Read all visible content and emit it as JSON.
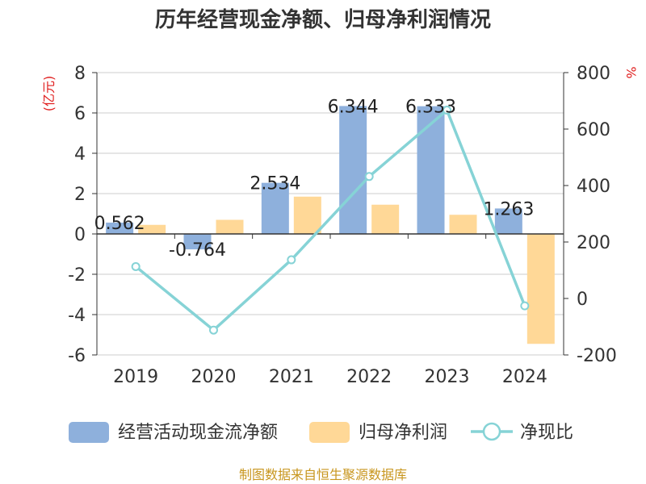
{
  "chart_data": {
    "type": "bar",
    "title": "历年经营现金净额、归母净利润情况",
    "categories": [
      "2019",
      "2020",
      "2021",
      "2022",
      "2023",
      "2024"
    ],
    "y_left": {
      "unit": "(亿元)",
      "ylim": [
        -6,
        8
      ],
      "ticks": [
        -6,
        -4,
        -2,
        0,
        2,
        4,
        6,
        8
      ]
    },
    "y_right": {
      "unit": "%",
      "ylim": [
        -200,
        800
      ],
      "ticks": [
        -200,
        0,
        200,
        400,
        600,
        800
      ]
    },
    "series": [
      {
        "name": "经营活动现金流净额",
        "kind": "bar",
        "axis": "left",
        "color": "#8eb0dc",
        "values": [
          0.562,
          -0.764,
          2.534,
          6.344,
          6.333,
          1.263
        ],
        "labels": [
          "0.562",
          "-0.764",
          "2.534",
          "6.344",
          "6.333",
          "1.263"
        ]
      },
      {
        "name": "归母净利润",
        "kind": "bar",
        "axis": "left",
        "color": "#ffd897",
        "values": [
          0.45,
          0.7,
          1.85,
          1.45,
          0.95,
          -5.45
        ]
      },
      {
        "name": "净现比",
        "kind": "line",
        "axis": "right",
        "color": "#86d3d6",
        "values": [
          113,
          -112,
          137,
          432,
          667,
          -26
        ]
      }
    ],
    "grid": true,
    "legend_position": "bottom"
  },
  "source": "制图数据来自恒生聚源数据库"
}
